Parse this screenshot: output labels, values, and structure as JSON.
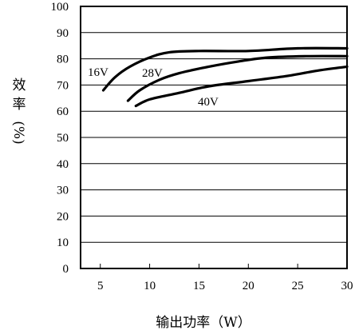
{
  "chart_data": {
    "type": "line",
    "xlabel": "输出功率（W）",
    "ylabel_chars": [
      "效",
      "率",
      "(%)"
    ],
    "xlim": [
      3,
      30
    ],
    "ylim": [
      0,
      100
    ],
    "x_ticks": [
      5,
      10,
      15,
      20,
      25,
      30
    ],
    "y_ticks": [
      0,
      10,
      20,
      30,
      40,
      50,
      60,
      70,
      80,
      90,
      100
    ],
    "grid": "horizontal",
    "series": [
      {
        "name": "16V",
        "x": [
          5.3,
          6.5,
          8.0,
          10.0,
          12.0,
          15.0,
          20.0,
          25.0,
          30.0
        ],
        "y": [
          68,
          73,
          77,
          80.5,
          82.5,
          83,
          83,
          84,
          84
        ]
      },
      {
        "name": "28V",
        "x": [
          7.8,
          9.0,
          11.0,
          13.0,
          16.0,
          19.0,
          22.0,
          26.0,
          30.0
        ],
        "y": [
          64,
          68,
          72,
          74.5,
          77,
          79,
          80.5,
          81,
          81
        ]
      },
      {
        "name": "40V",
        "x": [
          8.6,
          10.0,
          13.0,
          16.0,
          20.0,
          24.0,
          27.0,
          30.0
        ],
        "y": [
          62,
          64.5,
          67,
          69.5,
          71.5,
          73.5,
          75.5,
          77
        ]
      }
    ]
  }
}
